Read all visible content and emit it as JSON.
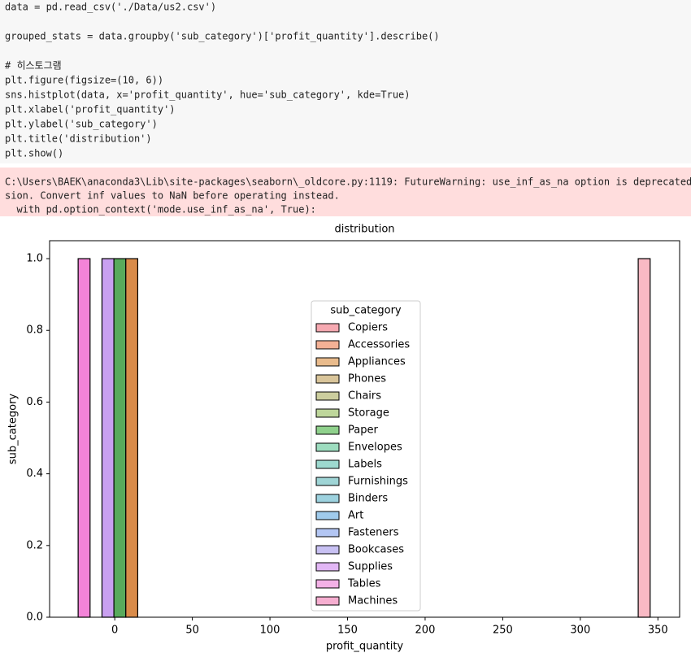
{
  "code": {
    "blocks": [
      [
        "data = pd.read_csv('./Data/us2.csv')"
      ],
      [
        "grouped_stats = data.groupby('sub_category')['profit_quantity'].describe()"
      ],
      [
        "# 히스토그램",
        "plt.figure(figsize=(10, 6))",
        "sns.histplot(data, x='profit_quantity', hue='sub_category', kde=True)",
        "plt.xlabel('profit_quantity')",
        "plt.ylabel('sub_category')",
        "plt.title('distribution')",
        "plt.show()"
      ]
    ]
  },
  "output": {
    "warning": [
      "C:\\Users\\BAEK\\anaconda3\\Lib\\site-packages\\seaborn\\_oldcore.py:1119: FutureWarning: use_inf_as_na option is deprecated",
      "sion. Convert inf values to NaN before operating instead.",
      "  with pd.option_context('mode.use_inf_as_na', True):"
    ]
  },
  "chart_data": {
    "type": "histogram",
    "title": "distribution",
    "xlabel": "profit_quantity",
    "ylabel": "sub_category",
    "xlim": [
      -42,
      364
    ],
    "ylim": [
      0,
      1.05
    ],
    "xticks": [
      0,
      50,
      100,
      150,
      200,
      250,
      300,
      350
    ],
    "yticks": [
      {
        "value": 0,
        "label": "0.0"
      },
      {
        "value": 0.2,
        "label": "0.2"
      },
      {
        "value": 0.4,
        "label": "0.4"
      },
      {
        "value": 0.6,
        "label": "0.6"
      },
      {
        "value": 0.8,
        "label": "0.8"
      },
      {
        "value": 1,
        "label": "1.0"
      }
    ],
    "bars": [
      {
        "bin": [
          -23.6,
          -15.92
        ],
        "value": 1,
        "color": "#f383d8"
      },
      {
        "bin": [
          -8.24,
          -0.56
        ],
        "value": 1,
        "color": "#c9a0f0"
      },
      {
        "bin": [
          -0.56,
          7.12
        ],
        "value": 1,
        "color": "#59aa5c"
      },
      {
        "bin": [
          7.12,
          14.8
        ],
        "value": 1,
        "color": "#d98b49"
      },
      {
        "bin": [
          337.32,
          345
        ],
        "value": 1,
        "color": "#f9b9c4"
      }
    ],
    "legend": {
      "title": "sub_category",
      "entries": [
        {
          "name": "Copiers",
          "color": "#f6a9b1"
        },
        {
          "name": "Accessories",
          "color": "#f4b195"
        },
        {
          "name": "Appliances",
          "color": "#e9bb8c"
        },
        {
          "name": "Phones",
          "color": "#d9c59a"
        },
        {
          "name": "Chairs",
          "color": "#ccce9e"
        },
        {
          "name": "Storage",
          "color": "#bed69b"
        },
        {
          "name": "Paper",
          "color": "#8fd18c"
        },
        {
          "name": "Envelopes",
          "color": "#9ddcbf"
        },
        {
          "name": "Labels",
          "color": "#9dd9cf"
        },
        {
          "name": "Furnishings",
          "color": "#9fd5d6"
        },
        {
          "name": "Binders",
          "color": "#9dd2df"
        },
        {
          "name": "Art",
          "color": "#a0cbec"
        },
        {
          "name": "Fasteners",
          "color": "#b3c6f3"
        },
        {
          "name": "Bookcases",
          "color": "#c8c1f3"
        },
        {
          "name": "Supplies",
          "color": "#e2b7f5"
        },
        {
          "name": "Tables",
          "color": "#f3b1e6"
        },
        {
          "name": "Machines",
          "color": "#f6aed0"
        }
      ]
    }
  }
}
